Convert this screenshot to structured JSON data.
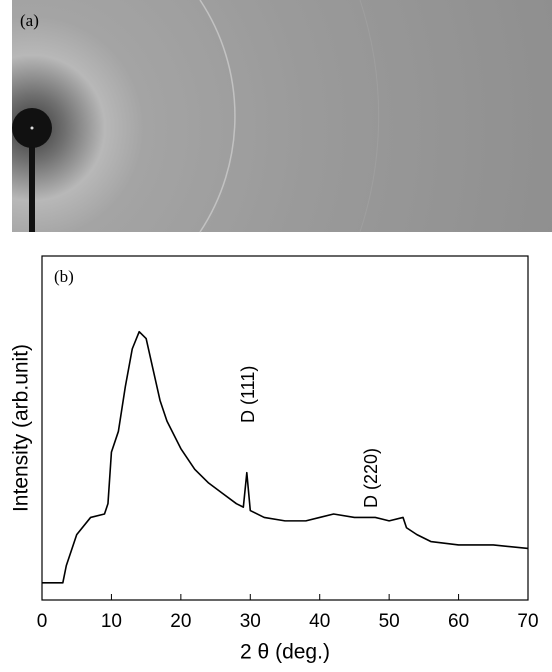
{
  "image_panel": {
    "label": "(a)"
  },
  "chart_data": {
    "type": "line",
    "panel_label": "(b)",
    "xlabel": "2 θ (deg.)",
    "ylabel": "Intensity (arb.unit)",
    "annotations": [
      "D (111)",
      "D (220)"
    ],
    "x": [
      0,
      3,
      3.5,
      5,
      7,
      9,
      9.5,
      10,
      11,
      12,
      13,
      14,
      15,
      16,
      17,
      18,
      20,
      22,
      24,
      26,
      28,
      29,
      29.5,
      30,
      32,
      35,
      38,
      40,
      42,
      45,
      48,
      50,
      52,
      52.5,
      54,
      56,
      60,
      65,
      70
    ],
    "values": [
      5,
      5,
      10,
      19,
      24,
      25,
      28,
      43,
      49,
      62,
      73,
      78,
      76,
      67,
      58,
      52,
      44,
      38,
      34,
      31,
      28,
      27,
      37,
      26,
      24,
      23,
      23,
      24,
      25,
      24,
      24,
      23,
      24,
      21,
      19,
      17,
      16,
      16,
      15
    ],
    "color": "#000000",
    "xlim": [
      0,
      70
    ],
    "xticks": [
      0,
      10,
      20,
      30,
      40,
      50,
      60,
      70
    ],
    "ylim": [
      0,
      100
    ]
  }
}
